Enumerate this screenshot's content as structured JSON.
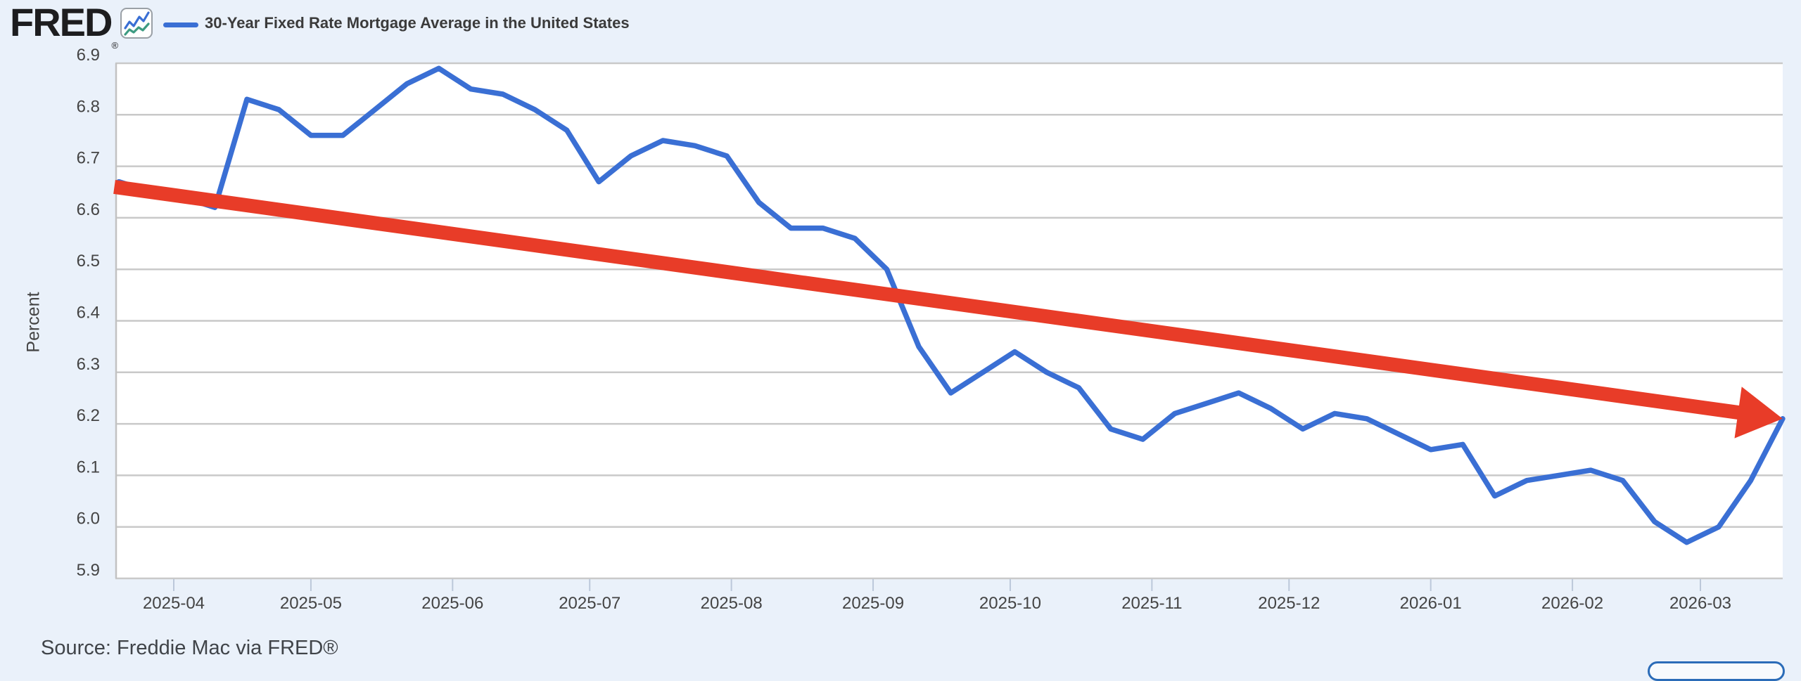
{
  "header": {
    "logo_text": "FRED",
    "logo_registered": "®",
    "legend_label": "30-Year Fixed Rate Mortgage Average in the United States"
  },
  "y_axis": {
    "label": "Percent",
    "tick_values": [
      6.9,
      6.8,
      6.7,
      6.6,
      6.5,
      6.4,
      6.3,
      6.2,
      6.1,
      6.0,
      5.9
    ]
  },
  "x_axis": {
    "ticks": [
      {
        "label": "2025-04",
        "date": "2025-04-01"
      },
      {
        "label": "2025-05",
        "date": "2025-05-01"
      },
      {
        "label": "2025-06",
        "date": "2025-06-01"
      },
      {
        "label": "2025-07",
        "date": "2025-07-01"
      },
      {
        "label": "2025-08",
        "date": "2025-08-01"
      },
      {
        "label": "2025-09",
        "date": "2025-09-01"
      },
      {
        "label": "2025-10",
        "date": "2025-10-01"
      },
      {
        "label": "2025-11",
        "date": "2025-11-01"
      },
      {
        "label": "2025-12",
        "date": "2025-12-01"
      },
      {
        "label": "2026-01",
        "date": "2026-01-01"
      },
      {
        "label": "2026-02",
        "date": "2026-02-01"
      },
      {
        "label": "2026-03",
        "date": "2026-03-01"
      }
    ]
  },
  "source": {
    "text": "Source: Freddie Mac via FRED®"
  },
  "colors": {
    "background": "#eaf1fa",
    "plot_background": "#ffffff",
    "gridline": "#c9c9c9",
    "plot_border": "#c2c2c2",
    "tick_mark": "#bcc8da",
    "line_blue": "#3a6fd4",
    "icon_teal": "#3e9b82",
    "arrow_red": "#e83c28",
    "text_dark": "#3b3b3b",
    "axis_text": "#444444",
    "partial_button_border": "#2b6cb8"
  },
  "chart_data": {
    "type": "line",
    "title": "30-Year Fixed Rate Mortgage Average in the United States",
    "ylabel": "Percent",
    "ylim": [
      5.9,
      6.9
    ],
    "grid": "horizontal",
    "legend_position": "top-left",
    "x_tick_labels": [
      "2025-04",
      "2025-05",
      "2025-06",
      "2025-07",
      "2025-08",
      "2025-09",
      "2025-10",
      "2025-11",
      "2025-12",
      "2026-01",
      "2026-02",
      "2026-03"
    ],
    "series": [
      {
        "name": "30-Year Fixed Rate Mortgage Average in the United States",
        "frequency": "weekly",
        "units": "Percent",
        "x": [
          "2025-03-20",
          "2025-03-27",
          "2025-04-03",
          "2025-04-10",
          "2025-04-17",
          "2025-04-24",
          "2025-05-01",
          "2025-05-08",
          "2025-05-15",
          "2025-05-22",
          "2025-05-29",
          "2025-06-05",
          "2025-06-12",
          "2025-06-19",
          "2025-06-26",
          "2025-07-03",
          "2025-07-10",
          "2025-07-17",
          "2025-07-24",
          "2025-07-31",
          "2025-08-07",
          "2025-08-14",
          "2025-08-21",
          "2025-08-28",
          "2025-09-04",
          "2025-09-11",
          "2025-09-18",
          "2025-09-25",
          "2025-10-02",
          "2025-10-09",
          "2025-10-16",
          "2025-10-23",
          "2025-10-30",
          "2025-11-06",
          "2025-11-13",
          "2025-11-20",
          "2025-11-27",
          "2025-12-04",
          "2025-12-11",
          "2025-12-18",
          "2025-12-25",
          "2026-01-01",
          "2026-01-08",
          "2026-01-15",
          "2026-01-22",
          "2026-01-29",
          "2026-02-05",
          "2026-02-12",
          "2026-02-19",
          "2026-02-26",
          "2026-03-05",
          "2026-03-12",
          "2026-03-19"
        ],
        "values": [
          6.67,
          6.65,
          6.64,
          6.62,
          6.83,
          6.81,
          6.76,
          6.76,
          6.81,
          6.86,
          6.89,
          6.85,
          6.84,
          6.81,
          6.77,
          6.67,
          6.72,
          6.75,
          6.74,
          6.72,
          6.63,
          6.58,
          6.58,
          6.56,
          6.5,
          6.35,
          6.26,
          6.3,
          6.34,
          6.3,
          6.27,
          6.19,
          6.17,
          6.22,
          6.24,
          6.26,
          6.23,
          6.19,
          6.22,
          6.21,
          6.18,
          6.15,
          6.16,
          6.06,
          6.09,
          6.1,
          6.11,
          6.09,
          6.01,
          5.97,
          6.0,
          6.09,
          6.21
        ]
      }
    ],
    "annotation": {
      "type": "trend-arrow",
      "color": "#e83c28",
      "from": {
        "date": "2025-03-19",
        "value": 6.66
      },
      "to": {
        "date": "2026-03-19",
        "value": 6.21
      }
    }
  }
}
